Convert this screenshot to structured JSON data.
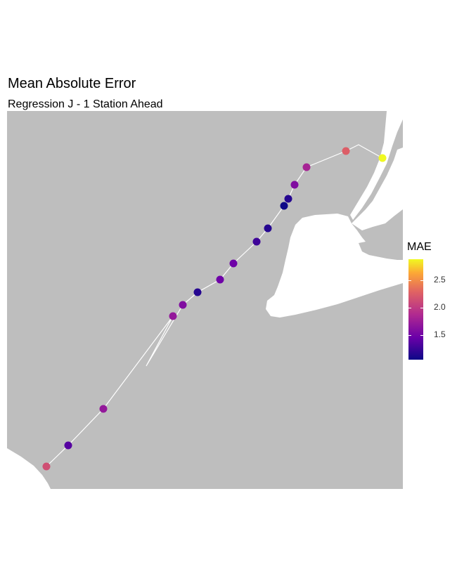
{
  "title": "Mean Absolute Error",
  "subtitle": "Regression J - 1 Station Ahead",
  "legend": {
    "title": "MAE",
    "ticks": [
      "2.5",
      "2.0",
      "1.5"
    ],
    "range": [
      1.0,
      2.9
    ]
  },
  "colors": {
    "water": "#bebebe",
    "land": "#ffffff",
    "route": "#ffffff",
    "scale": [
      "#0d0887",
      "#6a00a8",
      "#b12a90",
      "#e16462",
      "#fca636",
      "#f0f921"
    ]
  },
  "stations": [
    {
      "id": 1,
      "mae": 2.0
    },
    {
      "id": 2,
      "mae": 1.3
    },
    {
      "id": 3,
      "mae": 1.6
    },
    {
      "id": 4,
      "mae": 1.6
    },
    {
      "id": 5,
      "mae": 1.5
    },
    {
      "id": 6,
      "mae": 1.1
    },
    {
      "id": 7,
      "mae": 1.4
    },
    {
      "id": 8,
      "mae": 1.4
    },
    {
      "id": 9,
      "mae": 1.2
    },
    {
      "id": 10,
      "mae": 1.1
    },
    {
      "id": 11,
      "mae": 1.0
    },
    {
      "id": 12,
      "mae": 1.1
    },
    {
      "id": 13,
      "mae": 1.5
    },
    {
      "id": 14,
      "mae": 1.7
    },
    {
      "id": 15,
      "mae": 2.1
    },
    {
      "id": 16,
      "mae": 2.9
    }
  ]
}
